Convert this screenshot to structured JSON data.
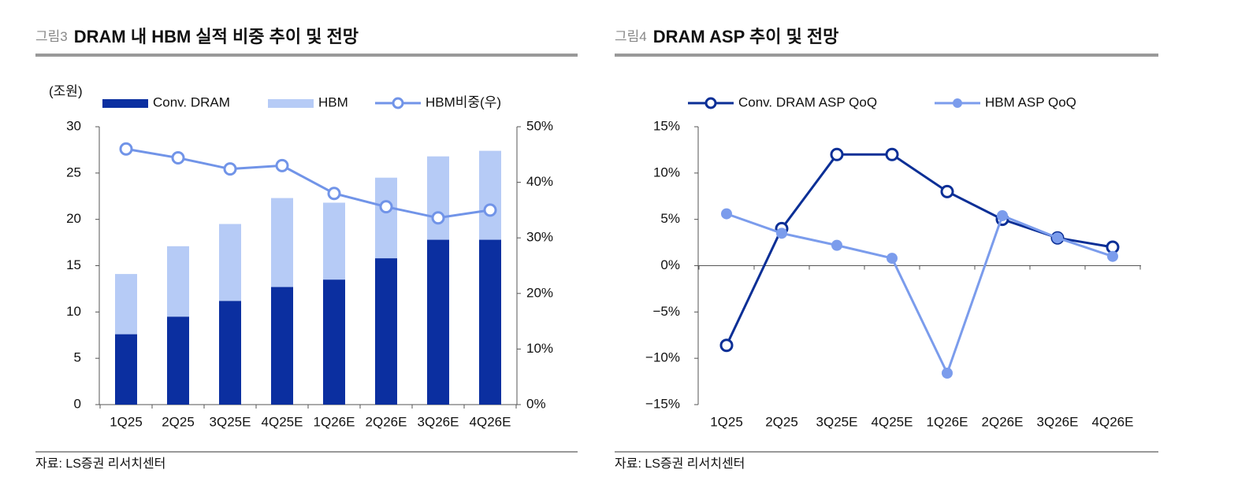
{
  "chart_data": [
    {
      "type": "bar",
      "stacked": true,
      "figure_label": "그림3",
      "title": "DRAM 내 HBM 실적 비중 추이 및 전망",
      "y_label": "(조원)",
      "source": "자료: LS증권 리서치센터",
      "categories": [
        "1Q25",
        "2Q25",
        "3Q25E",
        "4Q25E",
        "1Q26E",
        "2Q26E",
        "3Q26E",
        "4Q26E"
      ],
      "series": [
        {
          "name": "Conv. DRAM",
          "color": "#0b2fa0",
          "values": [
            7.6,
            9.5,
            11.2,
            12.7,
            13.5,
            15.8,
            17.8,
            17.8
          ]
        },
        {
          "name": "HBM",
          "color": "#b6cbf6",
          "values": [
            6.5,
            7.6,
            8.3,
            9.6,
            8.3,
            8.7,
            9.0,
            9.6
          ]
        },
        {
          "name": "HBM비중(우)",
          "type": "line",
          "axis": "y2",
          "marker": "hollow",
          "color": "#7194e8",
          "values": [
            46,
            44.4,
            42.4,
            43,
            38,
            35.6,
            33.6,
            35
          ]
        }
      ],
      "ylim": [
        0,
        30
      ],
      "yticks": [
        0,
        5,
        10,
        15,
        20,
        25,
        30
      ],
      "y2lim": [
        0,
        50
      ],
      "y2ticks": [
        {
          "value": 0,
          "label": "0%"
        },
        {
          "value": 10,
          "label": "10%"
        },
        {
          "value": 20,
          "label": "20%"
        },
        {
          "value": 30,
          "label": "30%"
        },
        {
          "value": 40,
          "label": "40%"
        },
        {
          "value": 50,
          "label": "50%"
        }
      ]
    },
    {
      "type": "line",
      "figure_label": "그림4",
      "title": "DRAM ASP 추이 및 전망",
      "source": "자료: LS증권 리서치센터",
      "categories": [
        "1Q25",
        "2Q25",
        "3Q25E",
        "4Q25E",
        "1Q26E",
        "2Q26E",
        "3Q26E",
        "4Q26E"
      ],
      "series": [
        {
          "name": "Conv. DRAM ASP QoQ",
          "color": "#0b2f96",
          "marker": "hollow",
          "values": [
            -8.6,
            4,
            12,
            12,
            8,
            5,
            3,
            2
          ]
        },
        {
          "name": "HBM ASP QoQ",
          "color": "#7b9cec",
          "marker": "filled",
          "values": [
            5.6,
            3.5,
            2.2,
            0.8,
            -11.6,
            5.4,
            3,
            1
          ]
        }
      ],
      "ylim": [
        -15,
        15
      ],
      "yticks": [
        {
          "value": -15,
          "label": "−15%"
        },
        {
          "value": -10,
          "label": "−10%"
        },
        {
          "value": -5,
          "label": "−5%"
        },
        {
          "value": 0,
          "label": "0%"
        },
        {
          "value": 5,
          "label": "5%"
        },
        {
          "value": 10,
          "label": "10%"
        },
        {
          "value": 15,
          "label": "15%"
        }
      ]
    }
  ]
}
